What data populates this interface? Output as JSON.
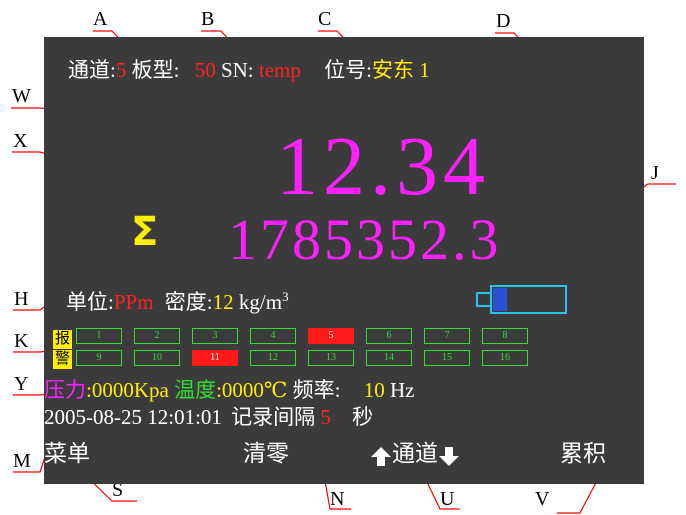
{
  "callouts": [
    "A",
    "B",
    "C",
    "D",
    "W",
    "X",
    "J",
    "H",
    "K",
    "Y",
    "M",
    "S",
    "N",
    "U",
    "V"
  ],
  "header": {
    "channel_label": "通道:",
    "channel_value": "5",
    "board_label": "板型:",
    "board_value": "50",
    "sn_label": "SN:",
    "sn_value": "temp",
    "position_label": "位号:",
    "position_value": "安东 1"
  },
  "reading": {
    "instant_value": "12.34",
    "total_symbol": "Σ",
    "total_value": "1785352.3"
  },
  "unit_row": {
    "unit_label": "单位:",
    "unit_value": "PPm",
    "density_label": "密度:",
    "density_value": "12",
    "density_unit": "kg/m",
    "density_unit_exp": "3"
  },
  "battery": {
    "level_fraction": 0.2,
    "icon": "battery-icon"
  },
  "alarm": {
    "tag_top": "报",
    "tag_bottom": "警",
    "cells": [
      {
        "label": "1",
        "active": false
      },
      {
        "label": "2",
        "active": false
      },
      {
        "label": "3",
        "active": false
      },
      {
        "label": "4",
        "active": false
      },
      {
        "label": "5",
        "active": true
      },
      {
        "label": "6",
        "active": false
      },
      {
        "label": "7",
        "active": false
      },
      {
        "label": "8",
        "active": false
      },
      {
        "label": "9",
        "active": false
      },
      {
        "label": "10",
        "active": false
      },
      {
        "label": "11",
        "active": true
      },
      {
        "label": "12",
        "active": false
      },
      {
        "label": "13",
        "active": false
      },
      {
        "label": "14",
        "active": false
      },
      {
        "label": "15",
        "active": false
      },
      {
        "label": "16",
        "active": false
      }
    ]
  },
  "env": {
    "pressure_label": "压力",
    "pressure_value": ":0000Kpa",
    "temp_label": "温度",
    "temp_value": ":0000℃",
    "freq_label": "频率:",
    "freq_value": "10",
    "freq_unit": "Hz"
  },
  "status": {
    "datetime": "2005-08-25 12:01:01",
    "interval_label": "记录间隔",
    "interval_value": "5",
    "interval_unit": "秒"
  },
  "menu": {
    "menu_label": "菜单",
    "clear_label": "清零",
    "channel_label": "通道",
    "total_label": "累积",
    "up_icon": "arrow-up-icon",
    "down_icon": "arrow-down-icon"
  },
  "colors": {
    "screen_bg": "#3b3b3b",
    "red": "#ff2020",
    "yellow": "#ffee00",
    "magenta": "#ff20ff",
    "green": "#33dd33",
    "cyan": "#22c8e8"
  }
}
